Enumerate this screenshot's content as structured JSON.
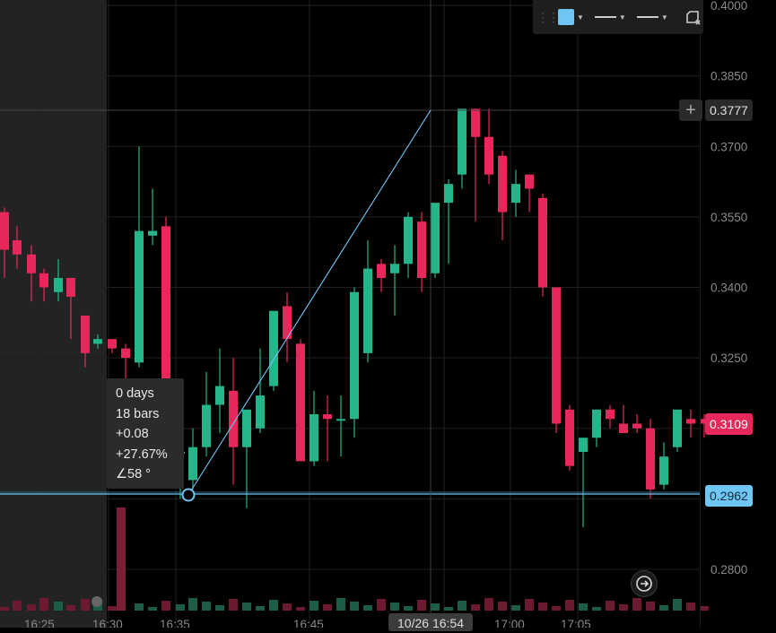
{
  "chart_data": {
    "type": "candlestick",
    "y_ticks": [
      "0.4000",
      "0.3850",
      "0.3700",
      "0.3550",
      "0.3400",
      "0.3250",
      "0.2800"
    ],
    "x_ticks": [
      "16:25",
      "16:30",
      "16:35",
      "16:45",
      "17:00",
      "17:05"
    ],
    "ylim": [
      0.2765,
      0.4
    ]
  },
  "price_tags": {
    "crosshair_price": "0.3777",
    "last_price": "0.3109",
    "line_price": "0.2962"
  },
  "crosshair_time": "10/26 16:54",
  "measure_tooltip": {
    "days": "0 days",
    "bars": "18 bars",
    "change": "+0.08",
    "change_pct": "+27.67%",
    "angle": "∠58 °"
  },
  "colors": {
    "up": "#26b58a",
    "down": "#e8285a",
    "drawing": "#6fc6f5",
    "last_price_bg": "#e8285a",
    "line_price_bg": "#6fc6f5"
  },
  "toolbar": {
    "color_swatch_icon": "color-swatch-icon",
    "line_style_icon": "line-style-icon",
    "line_width_icon": "line-width-icon",
    "clone_icon": "clone-icon"
  },
  "icons": {
    "plus": "plus-icon",
    "goto_realtime": "arrow-right-icon",
    "settings": "gear-icon"
  }
}
